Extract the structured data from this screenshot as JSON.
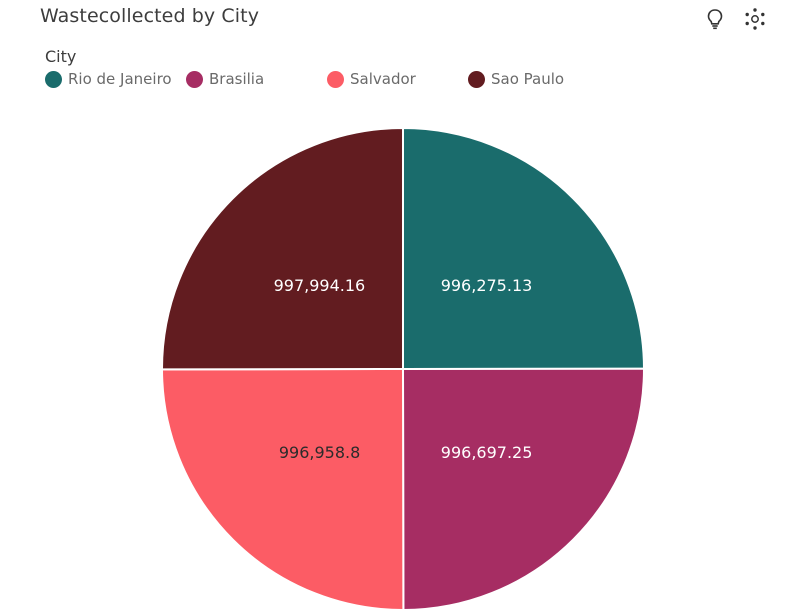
{
  "header": {
    "title": "Wastecollected by City",
    "insights_icon": "lightbulb-icon",
    "settings_icon": "chart-options-icon"
  },
  "legend": {
    "title": "City",
    "items": [
      {
        "label": "Rio de Janeiro",
        "color": "#1a6c6c"
      },
      {
        "label": "Brasilia",
        "color": "#a62d63"
      },
      {
        "label": "Salvador",
        "color": "#fc5c65"
      },
      {
        "label": "Sao Paulo",
        "color": "#621c20"
      }
    ]
  },
  "chart_data": {
    "type": "pie",
    "title": "Wastecollected by City",
    "legend_title": "City",
    "legend_position": "top-left",
    "start_angle": "12 o'clock, clockwise",
    "slices": [
      {
        "label": "Rio de Janeiro",
        "value": 996275.13,
        "display": "996,275.13",
        "color": "#1a6c6c",
        "label_color": "#ffffff"
      },
      {
        "label": "Brasilia",
        "value": 996697.25,
        "display": "996,697.25",
        "color": "#a62d63",
        "label_color": "#ffffff"
      },
      {
        "label": "Salvador",
        "value": 996958.8,
        "display": "996,958.8",
        "color": "#fc5c65",
        "label_color": "#2b2b2b"
      },
      {
        "label": "Sao Paulo",
        "value": 997994.16,
        "display": "997,994.16",
        "color": "#621c20",
        "label_color": "#ffffff"
      }
    ]
  }
}
